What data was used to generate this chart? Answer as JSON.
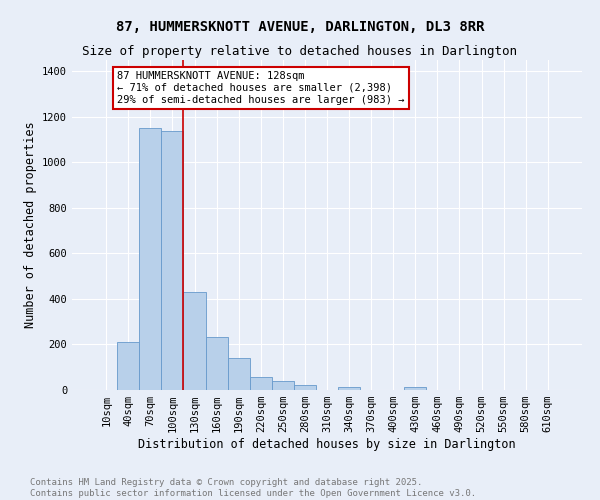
{
  "title_line1": "87, HUMMERSKNOTT AVENUE, DARLINGTON, DL3 8RR",
  "title_line2": "Size of property relative to detached houses in Darlington",
  "xlabel": "Distribution of detached houses by size in Darlington",
  "ylabel": "Number of detached properties",
  "categories": [
    "10sqm",
    "40sqm",
    "70sqm",
    "100sqm",
    "130sqm",
    "160sqm",
    "190sqm",
    "220sqm",
    "250sqm",
    "280sqm",
    "310sqm",
    "340sqm",
    "370sqm",
    "400sqm",
    "430sqm",
    "460sqm",
    "490sqm",
    "520sqm",
    "550sqm",
    "580sqm",
    "610sqm"
  ],
  "values": [
    0,
    210,
    1150,
    1140,
    430,
    235,
    140,
    55,
    40,
    20,
    0,
    15,
    0,
    0,
    15,
    0,
    0,
    0,
    0,
    0,
    0
  ],
  "bar_color": "#b8d0ea",
  "bar_edge_color": "#6699cc",
  "red_line_index": 4,
  "annotation_text": "87 HUMMERSKNOTT AVENUE: 128sqm\n← 71% of detached houses are smaller (2,398)\n29% of semi-detached houses are larger (983) →",
  "annotation_box_color": "#ffffff",
  "annotation_box_edge": "#cc0000",
  "footer_line1": "Contains HM Land Registry data © Crown copyright and database right 2025.",
  "footer_line2": "Contains public sector information licensed under the Open Government Licence v3.0.",
  "ylim": [
    0,
    1450
  ],
  "background_color": "#e8eef8",
  "grid_color": "#ffffff",
  "red_line_color": "#cc0000",
  "title_fontsize": 10,
  "subtitle_fontsize": 9,
  "axis_label_fontsize": 8.5,
  "tick_fontsize": 7.5,
  "footer_fontsize": 6.5,
  "annotation_fontsize": 7.5
}
